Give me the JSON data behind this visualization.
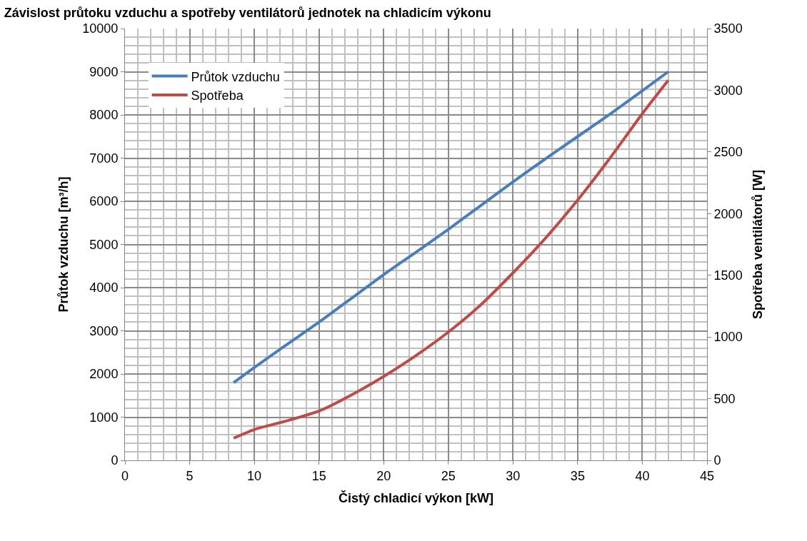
{
  "chart_data": {
    "type": "line",
    "title": "Závislost průtoku vzduchu a spotřeby ventilátorů jednotek na chladicím výkonu",
    "xlabel": "Čistý chladicí výkon [kW]",
    "ylabel": "Průtok vzduchu [m³/h]",
    "y2label": "Spotřeba ventilátorů [W]",
    "x": [
      8.4,
      10,
      12.5,
      15,
      17.5,
      20,
      22.5,
      25,
      27.5,
      30,
      32.5,
      35,
      37.5,
      40,
      42
    ],
    "series": [
      {
        "name": "Průtok vzduchu",
        "color": "#4a7ebb",
        "values": [
          1800,
          2150,
          2680,
          3200,
          3750,
          4300,
          4820,
          5350,
          5900,
          6450,
          6980,
          7500,
          8020,
          8560,
          9000
        ]
      },
      {
        "name": "Spotřeba",
        "color": "#be4b48",
        "axis": "y2",
        "values": [
          180,
          250,
          320,
          400,
          530,
          680,
          850,
          1040,
          1260,
          1520,
          1800,
          2110,
          2450,
          2810,
          3080
        ]
      }
    ],
    "xlim": [
      0,
      45
    ],
    "xticks": [
      0,
      5,
      10,
      15,
      20,
      25,
      30,
      35,
      40,
      45
    ],
    "ylim": [
      0,
      10000
    ],
    "yticks": [
      0,
      1000,
      2000,
      3000,
      4000,
      5000,
      6000,
      7000,
      8000,
      9000,
      10000
    ],
    "y2lim": [
      0,
      3500
    ],
    "y2ticks": [
      0,
      500,
      1000,
      1500,
      2000,
      2500,
      3000,
      3500
    ],
    "grid": true,
    "legend": "top left",
    "marker": "none",
    "line_style": "solid"
  }
}
